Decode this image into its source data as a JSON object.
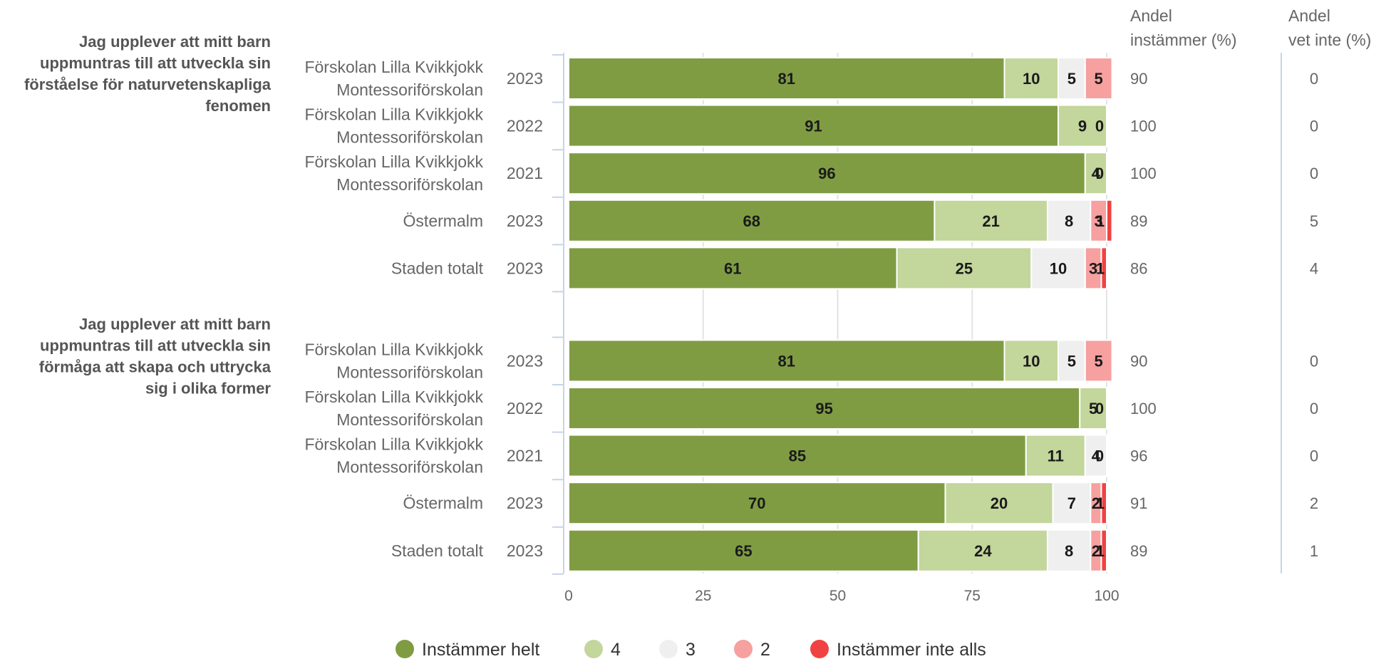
{
  "chart_data": {
    "type": "bar",
    "orientation": "horizontal",
    "stacked": true,
    "xlim": [
      0,
      100
    ],
    "xticks": [
      "0",
      "25",
      "50",
      "75",
      "100"
    ],
    "grid": true,
    "legend_position": "bottom",
    "legend": [
      {
        "name": "Instämmer helt",
        "color": "#7f9c43"
      },
      {
        "name": "4",
        "color": "#c3d69b"
      },
      {
        "name": "3",
        "color": "#efefef"
      },
      {
        "name": "2",
        "color": "#f6a0a0"
      },
      {
        "name": "Instämmer inte alls",
        "color": "#f04242"
      }
    ],
    "column_headers": {
      "agree": [
        "Andel",
        "instämmer (%)"
      ],
      "dontknow": [
        "Andel",
        "vet inte (%)"
      ]
    },
    "groups": [
      {
        "title_lines": [
          "Jag upplever att mitt barn",
          "uppmuntras till att utveckla sin",
          "förståelse för naturvetenskapliga",
          "fenomen"
        ],
        "rows": [
          {
            "label_lines": [
              "Förskolan Lilla Kvikkjokk",
              "Montessoriförskolan"
            ],
            "year": "2023",
            "values": [
              81,
              10,
              5,
              5,
              0
            ],
            "agree": "90",
            "dontknow": "0"
          },
          {
            "label_lines": [
              "Förskolan Lilla Kvikkjokk",
              "Montessoriförskolan"
            ],
            "year": "2022",
            "values": [
              91,
              9,
              0,
              0,
              0
            ],
            "agree": "100",
            "dontknow": "0"
          },
          {
            "label_lines": [
              "Förskolan Lilla Kvikkjokk",
              "Montessoriförskolan"
            ],
            "year": "2021",
            "values": [
              96,
              4,
              0,
              0,
              0
            ],
            "agree": "100",
            "dontknow": "0"
          },
          {
            "label_lines": [
              "Östermalm"
            ],
            "year": "2023",
            "values": [
              68,
              21,
              8,
              3,
              1
            ],
            "agree": "89",
            "dontknow": "5"
          },
          {
            "label_lines": [
              "Staden totalt"
            ],
            "year": "2023",
            "values": [
              61,
              25,
              10,
              3,
              1
            ],
            "agree": "86",
            "dontknow": "4"
          }
        ]
      },
      {
        "title_lines": [
          "Jag upplever att mitt barn",
          "uppmuntras till att utveckla sin",
          "förmåga att skapa och uttrycka",
          "sig i olika former"
        ],
        "rows": [
          {
            "label_lines": [
              "Förskolan Lilla Kvikkjokk",
              "Montessoriförskolan"
            ],
            "year": "2023",
            "values": [
              81,
              10,
              5,
              5,
              0
            ],
            "agree": "90",
            "dontknow": "0"
          },
          {
            "label_lines": [
              "Förskolan Lilla Kvikkjokk",
              "Montessoriförskolan"
            ],
            "year": "2022",
            "values": [
              95,
              5,
              0,
              0,
              0
            ],
            "agree": "100",
            "dontknow": "0"
          },
          {
            "label_lines": [
              "Förskolan Lilla Kvikkjokk",
              "Montessoriförskolan"
            ],
            "year": "2021",
            "values": [
              85,
              11,
              4,
              0,
              0
            ],
            "agree": "96",
            "dontknow": "0"
          },
          {
            "label_lines": [
              "Östermalm"
            ],
            "year": "2023",
            "values": [
              70,
              20,
              7,
              2,
              1
            ],
            "agree": "91",
            "dontknow": "2"
          },
          {
            "label_lines": [
              "Staden totalt"
            ],
            "year": "2023",
            "values": [
              65,
              24,
              8,
              2,
              1
            ],
            "agree": "89",
            "dontknow": "1"
          }
        ]
      }
    ]
  }
}
